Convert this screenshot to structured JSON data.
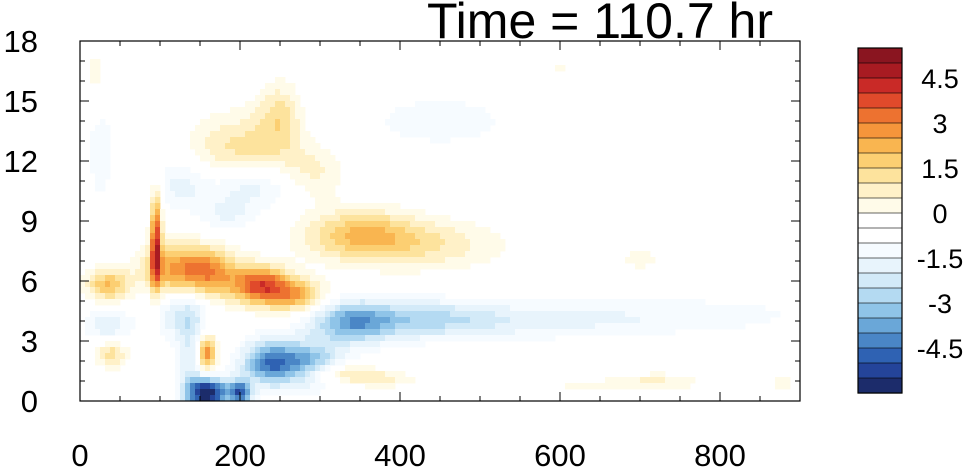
{
  "title": "Time = 110.7 hr",
  "chart_data": {
    "type": "heatmap",
    "title": "Time = 110.7 hr",
    "xlabel": "",
    "ylabel": "",
    "xlim": [
      0,
      900
    ],
    "ylim": [
      0,
      18
    ],
    "x_ticks": [
      "0",
      "200",
      "400",
      "600",
      "800"
    ],
    "y_ticks": [
      "0",
      "3",
      "6",
      "9",
      "12",
      "15",
      "18"
    ],
    "x_tick_values": [
      0,
      200,
      400,
      600,
      800
    ],
    "y_tick_values": [
      0,
      3,
      6,
      9,
      12,
      15,
      18
    ],
    "colorbar": {
      "labels": [
        "4.5",
        "3",
        "1.5",
        "0",
        "-1.5",
        "-3",
        "-4.5"
      ],
      "label_values": [
        4.5,
        3,
        1.5,
        0,
        -1.5,
        -3,
        -4.5
      ],
      "levels": [
        -5.5,
        -5,
        -4.5,
        -4,
        -3.5,
        -3,
        -2.5,
        -2,
        -1.5,
        -1,
        -0.5,
        0,
        0.5,
        1,
        1.5,
        2,
        2.5,
        3,
        3.5,
        4,
        4.5,
        5,
        5.5
      ],
      "colors": [
        "#1c2c6b",
        "#24449a",
        "#2f62b3",
        "#4a86c6",
        "#6aa7d8",
        "#8fc4e8",
        "#b4daf2",
        "#d3eaf8",
        "#e8f4fc",
        "#f6fbff",
        "#ffffff",
        "#ffffff",
        "#fffbe9",
        "#fff1c8",
        "#fde39d",
        "#fccf72",
        "#f9b550",
        "#f5953b",
        "#ed7230",
        "#e04a2b",
        "#c92a27",
        "#a81b22",
        "#8a1520"
      ]
    },
    "features": [
      {
        "x": 160,
        "y": 0.4,
        "sx": 18,
        "sy": 0.55,
        "v": -5.4
      },
      {
        "x": 200,
        "y": 0.4,
        "sx": 10,
        "sy": 0.45,
        "v": -4.0
      },
      {
        "x": 235,
        "y": 1.9,
        "sx": 24,
        "sy": 0.8,
        "v": -3.4
      },
      {
        "x": 285,
        "y": 1.9,
        "sx": 30,
        "sy": 0.8,
        "v": -2.9
      },
      {
        "x": 340,
        "y": 3.9,
        "sx": 35,
        "sy": 0.75,
        "v": -2.6
      },
      {
        "x": 420,
        "y": 4.1,
        "sx": 70,
        "sy": 0.7,
        "v": -1.8
      },
      {
        "x": 560,
        "y": 4.0,
        "sx": 110,
        "sy": 0.65,
        "v": -1.0
      },
      {
        "x": 770,
        "y": 4.3,
        "sx": 120,
        "sy": 0.7,
        "v": -0.7
      },
      {
        "x": 35,
        "y": 3.8,
        "sx": 20,
        "sy": 0.6,
        "v": -1.5
      },
      {
        "x": 120,
        "y": 4.4,
        "sx": 25,
        "sy": 0.8,
        "v": -1.4
      },
      {
        "x": 125,
        "y": 10.8,
        "sx": 25,
        "sy": 0.9,
        "v": -1.2
      },
      {
        "x": 215,
        "y": 10.8,
        "sx": 40,
        "sy": 0.8,
        "v": -1.6
      },
      {
        "x": 185,
        "y": 9.3,
        "sx": 25,
        "sy": 0.6,
        "v": -1.0
      },
      {
        "x": 450,
        "y": 14.0,
        "sx": 110,
        "sy": 1.6,
        "v": -0.6
      },
      {
        "x": 25,
        "y": 13.0,
        "sx": 14,
        "sy": 2.5,
        "v": -0.8
      },
      {
        "x": 140,
        "y": 2.5,
        "sx": 14,
        "sy": 2.0,
        "v": -1.6
      },
      {
        "x": 35,
        "y": 5.8,
        "sx": 20,
        "sy": 0.6,
        "v": 2.5
      },
      {
        "x": 95,
        "y": 8.0,
        "sx": 5,
        "sy": 1.8,
        "v": 4.3
      },
      {
        "x": 120,
        "y": 6.6,
        "sx": 30,
        "sy": 0.9,
        "v": 3.0
      },
      {
        "x": 165,
        "y": 6.4,
        "sx": 24,
        "sy": 0.9,
        "v": 2.6
      },
      {
        "x": 225,
        "y": 5.8,
        "sx": 25,
        "sy": 0.7,
        "v": 4.1
      },
      {
        "x": 270,
        "y": 5.3,
        "sx": 25,
        "sy": 0.6,
        "v": 2.7
      },
      {
        "x": 158,
        "y": 2.4,
        "sx": 9,
        "sy": 0.7,
        "v": 3.8
      },
      {
        "x": 40,
        "y": 2.4,
        "sx": 14,
        "sy": 0.5,
        "v": 1.8
      },
      {
        "x": 320,
        "y": 1.4,
        "sx": 30,
        "sy": 0.35,
        "v": 1.8
      },
      {
        "x": 380,
        "y": 1.1,
        "sx": 30,
        "sy": 0.3,
        "v": 1.1
      },
      {
        "x": 350,
        "y": 8.3,
        "sx": 50,
        "sy": 0.9,
        "v": 2.4
      },
      {
        "x": 440,
        "y": 7.8,
        "sx": 65,
        "sy": 0.9,
        "v": 1.3
      },
      {
        "x": 200,
        "y": 12.6,
        "sx": 45,
        "sy": 1.3,
        "v": 1.7
      },
      {
        "x": 250,
        "y": 14.3,
        "sx": 20,
        "sy": 1.2,
        "v": 1.6
      },
      {
        "x": 290,
        "y": 11.5,
        "sx": 30,
        "sy": 1.0,
        "v": 1.2
      },
      {
        "x": 20,
        "y": 16.2,
        "sx": 12,
        "sy": 1.4,
        "v": 0.9
      },
      {
        "x": 720,
        "y": 1.0,
        "sx": 40,
        "sy": 0.3,
        "v": 1.0
      },
      {
        "x": 640,
        "y": 0.7,
        "sx": 60,
        "sy": 0.25,
        "v": 0.6
      },
      {
        "x": 880,
        "y": 0.9,
        "sx": 15,
        "sy": 0.3,
        "v": 0.7
      },
      {
        "x": 700,
        "y": 7.1,
        "sx": 30,
        "sy": 0.6,
        "v": 0.6
      },
      {
        "x": 600,
        "y": 16.7,
        "sx": 15,
        "sy": 0.5,
        "v": 0.6
      }
    ]
  }
}
